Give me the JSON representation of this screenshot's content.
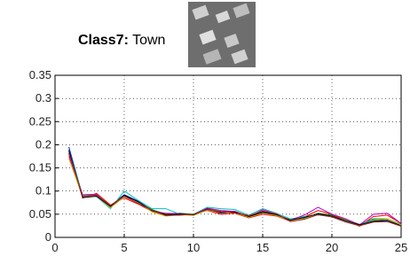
{
  "chart_data": {
    "type": "line",
    "title": [
      "Class7:",
      "Town"
    ],
    "x": [
      1,
      2,
      3,
      4,
      5,
      6,
      7,
      8,
      9,
      10,
      11,
      12,
      13,
      14,
      15,
      16,
      17,
      18,
      19,
      20,
      21,
      22,
      23,
      24,
      25
    ],
    "xlim": [
      0,
      25
    ],
    "xticks": [
      0,
      5,
      10,
      15,
      20,
      25
    ],
    "ylim": [
      0,
      0.35
    ],
    "yticks": [
      0,
      0.05,
      0.1,
      0.15,
      0.2,
      0.25,
      0.3,
      0.35
    ],
    "grid": true,
    "series": [
      {
        "color": "#0000ff",
        "values": [
          0.195,
          0.088,
          0.09,
          0.068,
          0.092,
          0.078,
          0.058,
          0.048,
          0.05,
          0.048,
          0.06,
          0.052,
          0.055,
          0.045,
          0.056,
          0.05,
          0.036,
          0.042,
          0.05,
          0.045,
          0.035,
          0.026,
          0.034,
          0.035,
          0.025
        ]
      },
      {
        "color": "#008000",
        "values": [
          0.185,
          0.09,
          0.092,
          0.065,
          0.088,
          0.075,
          0.06,
          0.05,
          0.052,
          0.05,
          0.062,
          0.055,
          0.056,
          0.046,
          0.055,
          0.048,
          0.038,
          0.04,
          0.052,
          0.048,
          0.038,
          0.028,
          0.04,
          0.04,
          0.028
        ]
      },
      {
        "color": "#ff0000",
        "values": [
          0.18,
          0.085,
          0.095,
          0.07,
          0.085,
          0.072,
          0.056,
          0.048,
          0.048,
          0.05,
          0.058,
          0.05,
          0.052,
          0.042,
          0.05,
          0.046,
          0.035,
          0.044,
          0.058,
          0.05,
          0.036,
          0.024,
          0.045,
          0.048,
          0.03
        ]
      },
      {
        "color": "#00bfbf",
        "values": [
          0.19,
          0.09,
          0.088,
          0.062,
          0.1,
          0.08,
          0.062,
          0.062,
          0.05,
          0.05,
          0.065,
          0.062,
          0.06,
          0.048,
          0.062,
          0.052,
          0.04,
          0.045,
          0.048,
          0.045,
          0.034,
          0.028,
          0.038,
          0.036,
          0.026
        ]
      },
      {
        "color": "#bf00bf",
        "values": [
          0.175,
          0.092,
          0.093,
          0.066,
          0.09,
          0.074,
          0.057,
          0.052,
          0.051,
          0.049,
          0.063,
          0.058,
          0.056,
          0.044,
          0.06,
          0.05,
          0.037,
          0.048,
          0.065,
          0.05,
          0.04,
          0.027,
          0.05,
          0.052,
          0.03
        ]
      },
      {
        "color": "#bfbf00",
        "values": [
          0.17,
          0.087,
          0.09,
          0.064,
          0.087,
          0.076,
          0.055,
          0.046,
          0.049,
          0.047,
          0.059,
          0.053,
          0.054,
          0.043,
          0.053,
          0.047,
          0.036,
          0.041,
          0.05,
          0.046,
          0.037,
          0.026,
          0.036,
          0.04,
          0.027
        ]
      },
      {
        "color": "#000000",
        "values": [
          0.188,
          0.086,
          0.089,
          0.067,
          0.091,
          0.077,
          0.058,
          0.049,
          0.05,
          0.049,
          0.061,
          0.054,
          0.055,
          0.045,
          0.054,
          0.049,
          0.037,
          0.043,
          0.051,
          0.046,
          0.036,
          0.027,
          0.035,
          0.037,
          0.025
        ]
      },
      {
        "color": "#a52a2a",
        "values": [
          0.182,
          0.089,
          0.091,
          0.069,
          0.089,
          0.073,
          0.059,
          0.047,
          0.048,
          0.05,
          0.06,
          0.056,
          0.053,
          0.047,
          0.057,
          0.051,
          0.034,
          0.039,
          0.049,
          0.044,
          0.033,
          0.025,
          0.033,
          0.034,
          0.024
        ]
      }
    ]
  }
}
